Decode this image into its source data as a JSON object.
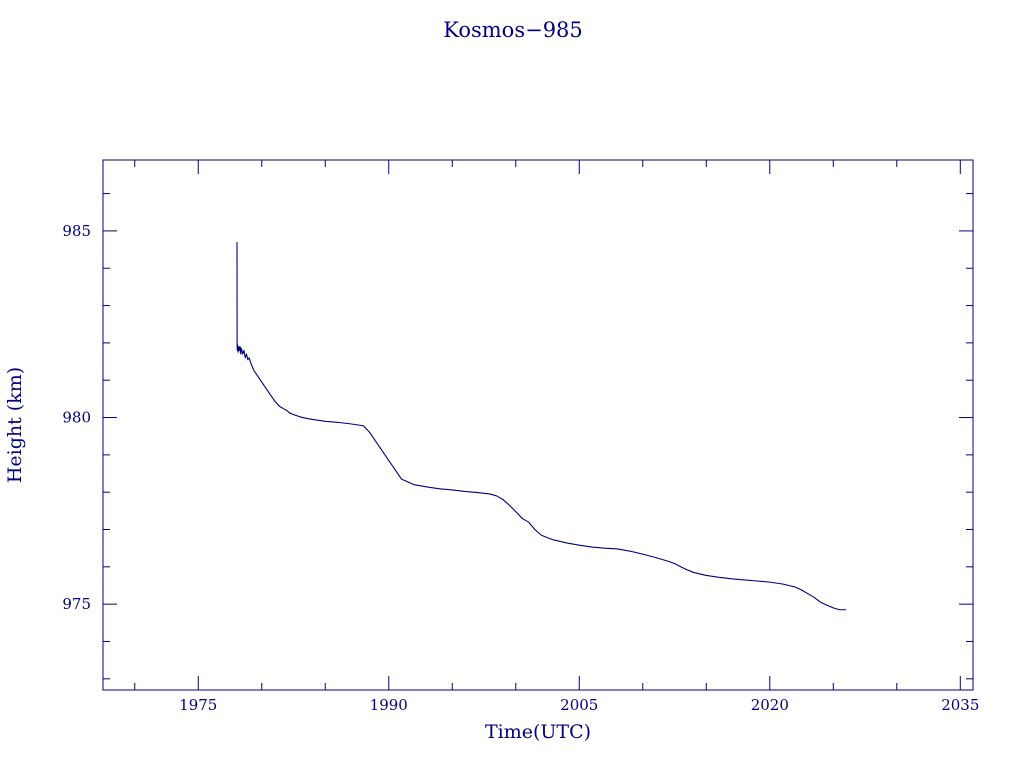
{
  "chart_data": {
    "type": "line",
    "title": "Kosmos−985",
    "xlabel": "Time(UTC)",
    "ylabel": "Height (km)",
    "xlim": [
      1967.5,
      2036
    ],
    "ylim": [
      972.7,
      986.9
    ],
    "x_ticks": [
      {
        "value": 1975,
        "label": "1975"
      },
      {
        "value": 1990,
        "label": "1990"
      },
      {
        "value": 2005,
        "label": "2005"
      },
      {
        "value": 2020,
        "label": "2020"
      },
      {
        "value": 2035,
        "label": "2035"
      }
    ],
    "x_minor_step": 5,
    "y_ticks": [
      {
        "value": 975,
        "label": "975"
      },
      {
        "value": 980,
        "label": "980"
      },
      {
        "value": 985,
        "label": "985"
      }
    ],
    "y_minor_step": 1,
    "grid": false,
    "color": "#000080",
    "series": [
      {
        "x": [
          1978.05,
          1978.06,
          1978.07,
          1978.1,
          1978.15,
          1978.2,
          1978.25,
          1978.3,
          1978.35,
          1978.4,
          1978.5,
          1978.6,
          1978.7,
          1978.8,
          1978.9,
          1979.0,
          1979.2,
          1979.4,
          1979.6,
          1979.8,
          1980.0,
          1980.3,
          1980.6,
          1981.0,
          1981.4,
          1981.8,
          1982.0,
          1982.2,
          1982.5,
          1983.0,
          1983.5,
          1984.0,
          1985.0,
          1986.0,
          1987.0,
          1988.0,
          1988.5,
          1989.0,
          1989.5,
          1990.0,
          1991.0,
          1992.0,
          1992.5,
          1993.0,
          1994.0,
          1995.0,
          1996.0,
          1997.0,
          1998.0,
          1998.5,
          1999.0,
          1999.5,
          2000.0,
          2000.5,
          2001.0,
          2001.5,
          2002.0,
          2002.5,
          2003.0,
          2004.0,
          2005.0,
          2006.0,
          2007.0,
          2008.0,
          2009.0,
          2010.0,
          2011.0,
          2012.0,
          2012.5,
          2013.0,
          2013.5,
          2014.0,
          2015.0,
          2016.0,
          2017.0,
          2018.0,
          2019.0,
          2020.0,
          2021.0,
          2022.0,
          2022.5,
          2023.0,
          2023.5,
          2024.0,
          2024.5,
          2025.0,
          2025.5,
          2026.0
        ],
        "y": [
          984.7,
          982.0,
          981.8,
          981.95,
          981.75,
          981.9,
          981.8,
          981.9,
          981.7,
          981.85,
          981.7,
          981.8,
          981.6,
          981.7,
          981.55,
          981.6,
          981.4,
          981.25,
          981.15,
          981.05,
          980.95,
          980.8,
          980.65,
          980.45,
          980.3,
          980.22,
          980.18,
          980.12,
          980.08,
          980.02,
          979.98,
          979.95,
          979.9,
          979.87,
          979.83,
          979.78,
          979.6,
          979.35,
          979.1,
          978.85,
          978.35,
          978.2,
          978.17,
          978.14,
          978.09,
          978.06,
          978.02,
          977.99,
          977.95,
          977.9,
          977.8,
          977.65,
          977.48,
          977.3,
          977.2,
          977.0,
          976.85,
          976.78,
          976.72,
          976.64,
          976.58,
          976.53,
          976.5,
          976.48,
          976.42,
          976.34,
          976.25,
          976.15,
          976.09,
          976.0,
          975.92,
          975.85,
          975.77,
          975.72,
          975.68,
          975.65,
          975.62,
          975.59,
          975.54,
          975.46,
          975.38,
          975.28,
          975.18,
          975.05,
          974.97,
          974.9,
          974.85,
          974.85
        ]
      }
    ]
  }
}
